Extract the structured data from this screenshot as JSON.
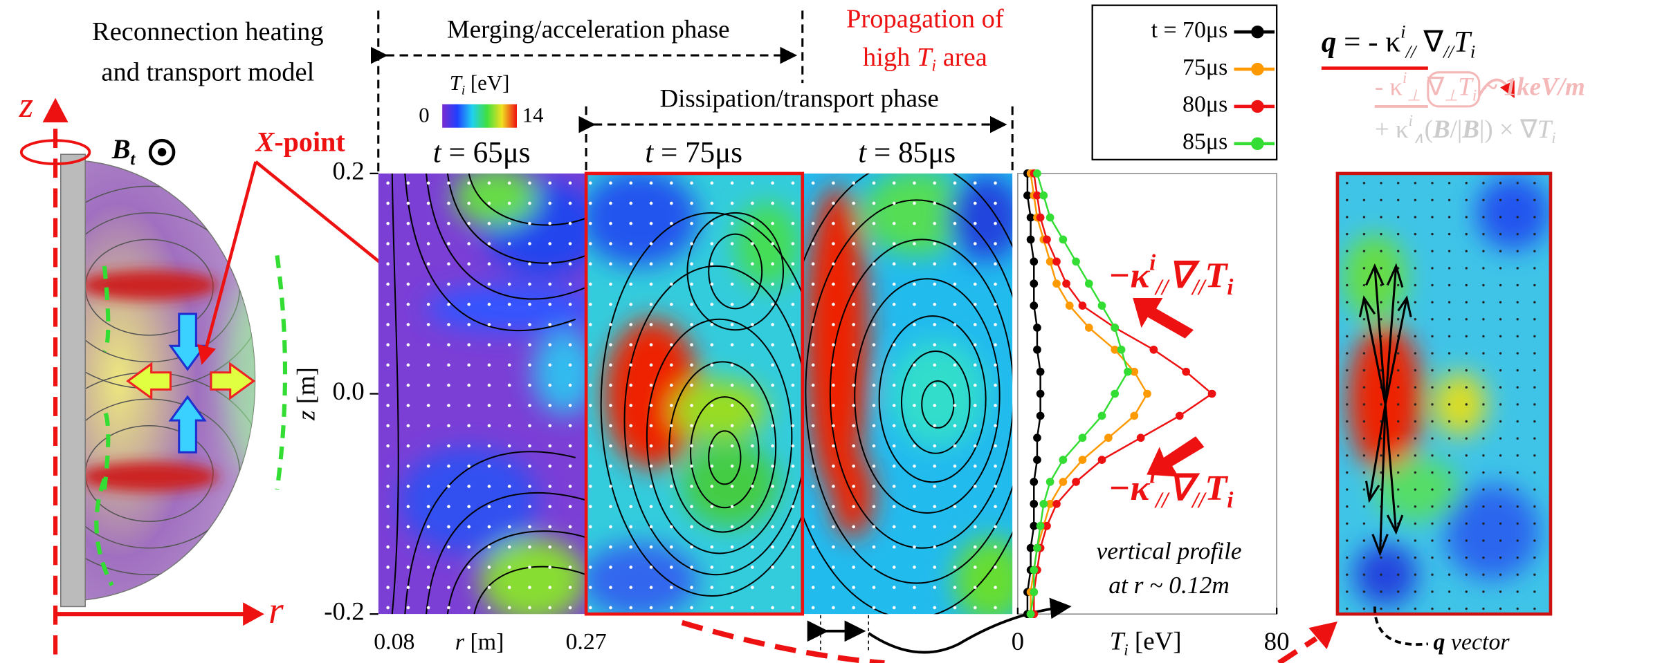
{
  "model": {
    "title": [
      "Reconnection heating",
      "and transport model"
    ],
    "z_axis": [
      {
        "text": "z",
        "style": "i"
      }
    ],
    "r_axis": [
      {
        "text": "r",
        "style": "i"
      }
    ],
    "bt": [
      {
        "text": "B",
        "style": "bi"
      },
      {
        "text": "t",
        "style": "bis"
      }
    ],
    "x_point": [
      {
        "text": "X",
        "style": "bi"
      },
      {
        "text": "-point",
        "style": "b"
      }
    ]
  },
  "phases": {
    "merging": "Merging/acceleration phase",
    "dissipation": "Dissipation/transport phase",
    "propagation": [
      "Propagation of",
      [
        {
          "text": "high "
        },
        {
          "text": "T",
          "style": "i"
        },
        {
          "text": "i",
          "style": "is"
        },
        {
          "text": " area"
        }
      ]
    ]
  },
  "colorbar": {
    "label": [
      {
        "text": "T",
        "style": "i"
      },
      {
        "text": "i",
        "style": "is"
      },
      {
        "text": " [eV]"
      }
    ],
    "min": 0,
    "max": 14
  },
  "panels": {
    "times": [
      [
        {
          "text": "t",
          "style": "i"
        },
        {
          "text": " = 65μs"
        }
      ],
      [
        {
          "text": "t",
          "style": "i"
        },
        {
          "text": " = 75μs"
        }
      ],
      [
        {
          "text": "t",
          "style": "i"
        },
        {
          "text": " = 85μs"
        }
      ]
    ],
    "r_label": [
      {
        "text": "r",
        "style": "i"
      },
      {
        "text": " [m]"
      }
    ],
    "r_ticks": [
      0.08,
      0.27
    ]
  },
  "chart_data": {
    "type": "line",
    "xlabel": [
      {
        "text": "T",
        "style": "i"
      },
      {
        "text": "i",
        "style": "is"
      },
      {
        "text": " [eV]"
      }
    ],
    "ylabel": [
      {
        "text": "z",
        "style": "i"
      },
      {
        "text": " [m]"
      }
    ],
    "xlim": [
      0,
      80
    ],
    "xticks": [
      0,
      80
    ],
    "ylim": [
      -0.2,
      0.2
    ],
    "yticks": [
      0.2,
      {
        "value": 0,
        "label": "0.0"
      },
      -0.2
    ],
    "z": [
      0.2,
      0.18,
      0.16,
      0.14,
      0.12,
      0.1,
      0.08,
      0.06,
      0.04,
      0.02,
      0,
      -0.02,
      -0.04,
      -0.06,
      -0.08,
      -0.1,
      -0.12,
      -0.14,
      -0.16,
      -0.18,
      -0.2
    ],
    "series": [
      {
        "name": "t = 70μs",
        "color": "#000000",
        "values": [
          3,
          3,
          4,
          4,
          5,
          5,
          5,
          6,
          6,
          7,
          7,
          7,
          6,
          6,
          5,
          5,
          5,
          4,
          4,
          3,
          3
        ]
      },
      {
        "name": "75μs",
        "color": "#ff9900",
        "values": [
          4,
          5,
          6,
          8,
          10,
          12,
          16,
          22,
          30,
          36,
          40,
          36,
          28,
          20,
          14,
          10,
          8,
          6,
          5,
          4,
          4
        ]
      },
      {
        "name": "80μs",
        "color": "#ee1111",
        "values": [
          5,
          6,
          7,
          9,
          12,
          15,
          20,
          30,
          42,
          52,
          60,
          50,
          38,
          26,
          18,
          12,
          9,
          7,
          6,
          5,
          5
        ]
      },
      {
        "name": "85μs",
        "color": "#33dd33",
        "values": [
          6,
          8,
          10,
          14,
          18,
          22,
          26,
          30,
          32,
          34,
          30,
          26,
          20,
          14,
          10,
          8,
          7,
          6,
          5,
          5,
          4
        ]
      }
    ]
  },
  "annotations": {
    "flux": [
      {
        "text": "−κ",
        "style": "bi"
      },
      {
        "text": "i",
        "style": "bip"
      },
      {
        "text": "//",
        "style": "bis"
      },
      {
        "text": "∇",
        "style": "bi"
      },
      {
        "text": "//",
        "style": "bis"
      },
      {
        "text": "T",
        "style": "bi"
      },
      {
        "text": "i",
        "style": "bis"
      }
    ],
    "profile_note": [
      "vertical profile",
      "at r ~ 0.12m"
    ],
    "q_vector": [
      {
        "text": "q",
        "style": "bi"
      },
      {
        "text": " vector",
        "style": "i"
      }
    ]
  },
  "equation": [
    [
      {
        "text": "q",
        "style": "bi"
      },
      {
        "text": " = - κ"
      },
      {
        "text": "i",
        "style": "ip"
      },
      {
        "text": "//",
        "style": "is"
      },
      {
        "text": " ∇"
      },
      {
        "text": "//",
        "style": "is"
      },
      {
        "text": "T",
        "style": "i"
      },
      {
        "text": "i",
        "style": "is"
      }
    ],
    [
      {
        "text": "- κ"
      },
      {
        "text": "i",
        "style": "ip"
      },
      {
        "text": "⊥",
        "style": "is"
      },
      {
        "text": " ∇"
      },
      {
        "text": "⊥",
        "style": "is"
      },
      {
        "text": "T",
        "style": "i"
      },
      {
        "text": "i",
        "style": "is"
      },
      {
        "text": " ~ 1keV/m",
        "style": "bi"
      }
    ],
    [
      {
        "text": "+ κ"
      },
      {
        "text": "i",
        "style": "ip"
      },
      {
        "text": "∧",
        "style": "is"
      },
      {
        "text": "("
      },
      {
        "text": "B",
        "style": "bi"
      },
      {
        "text": "/|"
      },
      {
        "text": "B",
        "style": "bi"
      },
      {
        "text": "|) × ∇"
      },
      {
        "text": "T",
        "style": "i"
      },
      {
        "text": "i",
        "style": "is"
      }
    ]
  ]
}
